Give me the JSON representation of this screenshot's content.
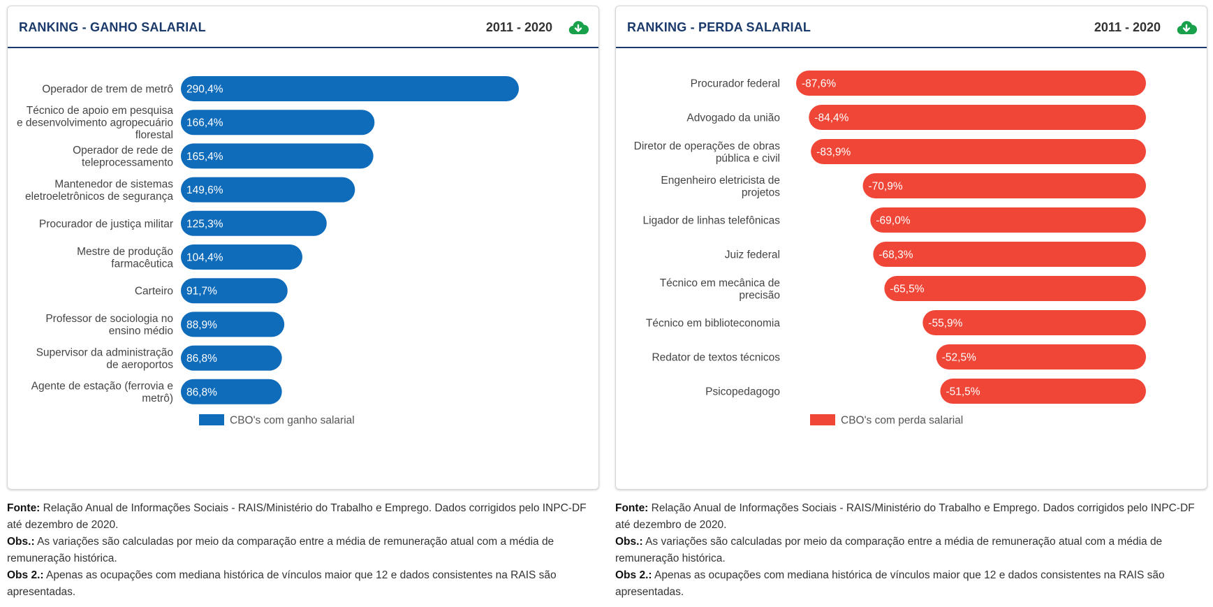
{
  "panels": [
    {
      "title": "RANKING - GANHO SALARIAL",
      "period": "2011 - 2020",
      "download_icon": "cloud-download-icon",
      "color": "#0f6cbb",
      "chart_data": {
        "type": "bar",
        "orientation": "horizontal",
        "categories": [
          [
            "Operador de trem de metrô"
          ],
          [
            "Técnico de apoio em pesquisa",
            "e desenvolvimento agropecuário",
            "florestal"
          ],
          [
            "Operador de rede de",
            "teleprocessamento"
          ],
          [
            "Mantenedor de sistemas",
            "eletroeletrônicos de segurança"
          ],
          [
            "Procurador de justiça militar"
          ],
          [
            "Mestre de produção",
            "farmacêutica"
          ],
          [
            "Carteiro"
          ],
          [
            "Professor de sociologia no",
            "ensino médio"
          ],
          [
            "Supervisor da administração",
            "de aeroportos"
          ],
          [
            "Agente de estação (ferrovia e",
            "metrô)"
          ]
        ],
        "values": [
          290.4,
          166.4,
          165.4,
          149.6,
          125.3,
          104.4,
          91.7,
          88.9,
          86.8,
          86.8
        ],
        "value_labels": [
          "290,4%",
          "166,4%",
          "165,4%",
          "149,6%",
          "125,3%",
          "104,4%",
          "91,7%",
          "88,9%",
          "86,8%",
          "86,8%"
        ],
        "legend": "CBO's com ganho salarial",
        "legend_position": "bottom"
      },
      "notes": {
        "fonte_label": "Fonte:",
        "fonte_text": " Relação Anual de Informações Sociais - RAIS/Ministério do Trabalho e Emprego. Dados corrigidos pelo INPC-DF até dezembro de 2020.",
        "obs_label": "Obs.:",
        "obs_text": " As variações são calculadas por meio da comparação entre a média de remuneração atual com a média de remuneração histórica.",
        "obs2_label": "Obs 2.:",
        "obs2_text": " Apenas as ocupações com mediana histórica de vínculos maior que 12 e dados consistentes na RAIS são apresentadas."
      }
    },
    {
      "title": "RANKING - PERDA SALARIAL",
      "period": "2011 - 2020",
      "download_icon": "cloud-download-icon",
      "color": "#ef4637",
      "chart_data": {
        "type": "bar",
        "orientation": "horizontal",
        "categories": [
          [
            "Procurador federal"
          ],
          [
            "Advogado da união"
          ],
          [
            "Diretor de operações de obras",
            "pública e civil"
          ],
          [
            "Engenheiro eletricista de",
            "projetos"
          ],
          [
            "Ligador de linhas telefônicas"
          ],
          [
            "Juiz federal"
          ],
          [
            "Técnico em mecânica de",
            "precisão"
          ],
          [
            "Técnico em biblioteconomia"
          ],
          [
            "Redator de textos técnicos"
          ],
          [
            "Psicopedagogo"
          ]
        ],
        "values": [
          -87.6,
          -84.4,
          -83.9,
          -70.9,
          -69.0,
          -68.3,
          -65.5,
          -55.9,
          -52.5,
          -51.5
        ],
        "value_labels": [
          "-87,6%",
          "-84,4%",
          "-83,9%",
          "-70,9%",
          "-69,0%",
          "-68,3%",
          "-65,5%",
          "-55,9%",
          "-52,5%",
          "-51,5%"
        ],
        "legend": "CBO's com perda salarial",
        "legend_position": "bottom"
      },
      "notes": {
        "fonte_label": "Fonte:",
        "fonte_text": " Relação Anual de Informações Sociais - RAIS/Ministério do Trabalho e Emprego. Dados corrigidos pelo INPC-DF até dezembro de 2020.",
        "obs_label": "Obs.:",
        "obs_text": " As variações são calculadas por meio da comparação entre a média de remuneração atual com a média de remuneração histórica.",
        "obs2_label": "Obs 2.:",
        "obs2_text": " Apenas as ocupações com mediana histórica de vínculos maior que 12 e dados consistentes na RAIS são apresentadas."
      }
    }
  ]
}
